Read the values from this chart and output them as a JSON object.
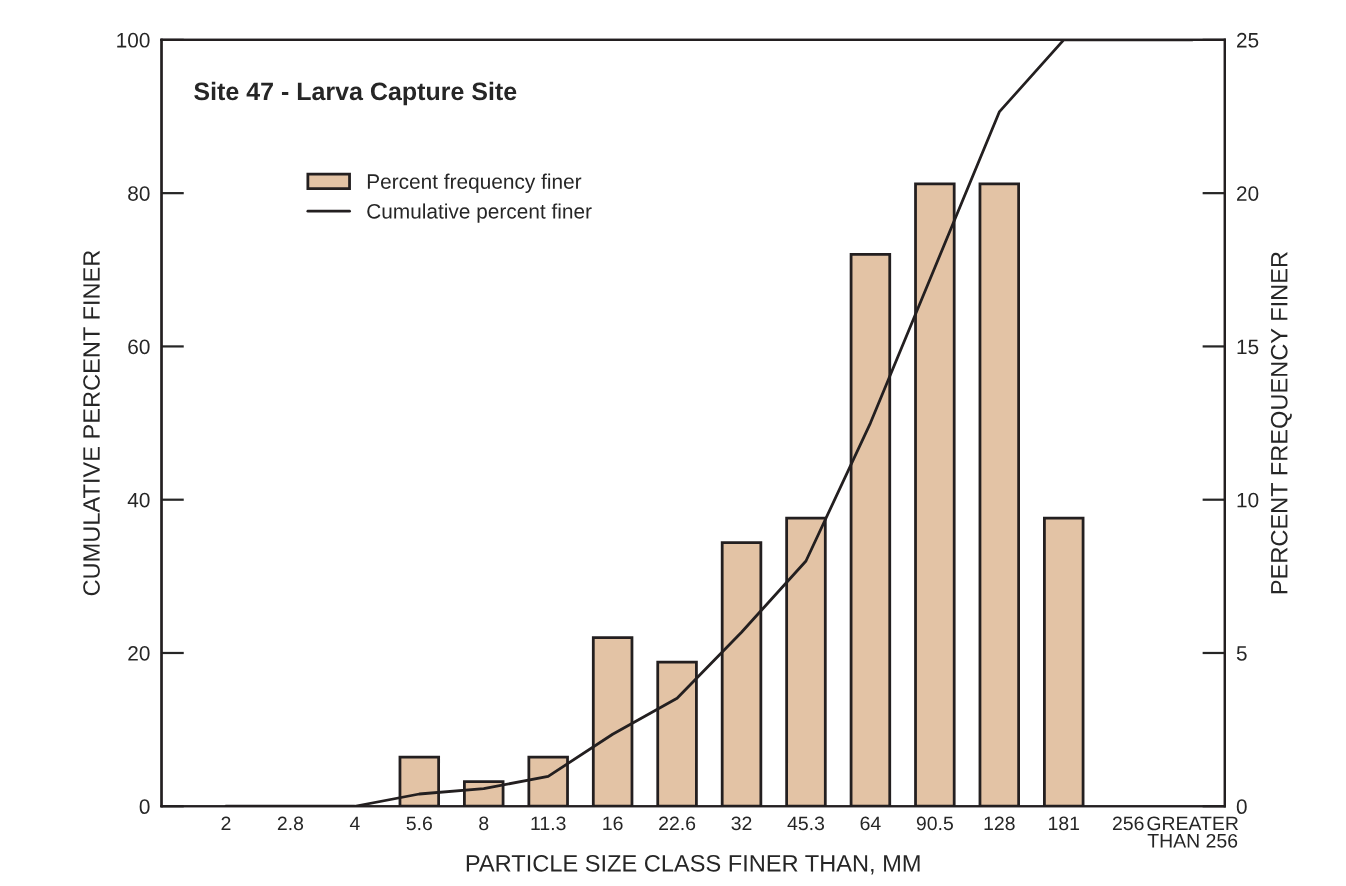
{
  "chart_data": {
    "type": "bar",
    "title": "Site 47 - Larva Capture Site",
    "xlabel": "PARTICLE SIZE CLASS FINER THAN, MM",
    "ylabel": "CUMULATIVE PERCENT FINER",
    "y2label": "PERCENT FREQUENCY FINER",
    "categories": [
      "2",
      "2.8",
      "4",
      "5.6",
      "8",
      "11.3",
      "16",
      "22.6",
      "32",
      "45.3",
      "64",
      "90.5",
      "128",
      "181",
      "256",
      "GREATER\nTHAN 256"
    ],
    "series": [
      {
        "name": "Percent frequency finer",
        "axis": "y2",
        "color": "#e3c3a5",
        "values": [
          null,
          null,
          null,
          1.6,
          0.8,
          1.6,
          5.5,
          4.7,
          8.6,
          9.4,
          18.0,
          20.3,
          20.3,
          9.4,
          null,
          null
        ]
      },
      {
        "name": "Cumulative percent finer",
        "type": "line",
        "color": "#231f20",
        "values": [
          0,
          0,
          0,
          1.6,
          2.3,
          3.9,
          9.4,
          14.1,
          22.7,
          32.0,
          50.0,
          70.3,
          90.6,
          100,
          100,
          100
        ]
      }
    ],
    "ylim": [
      0,
      100
    ],
    "yticks": [
      0,
      20,
      40,
      60,
      80,
      100
    ],
    "y2lim": [
      0,
      25
    ],
    "y2ticks": [
      0,
      5,
      10,
      15,
      20,
      25
    ],
    "legend": "top left",
    "grid": false
  }
}
